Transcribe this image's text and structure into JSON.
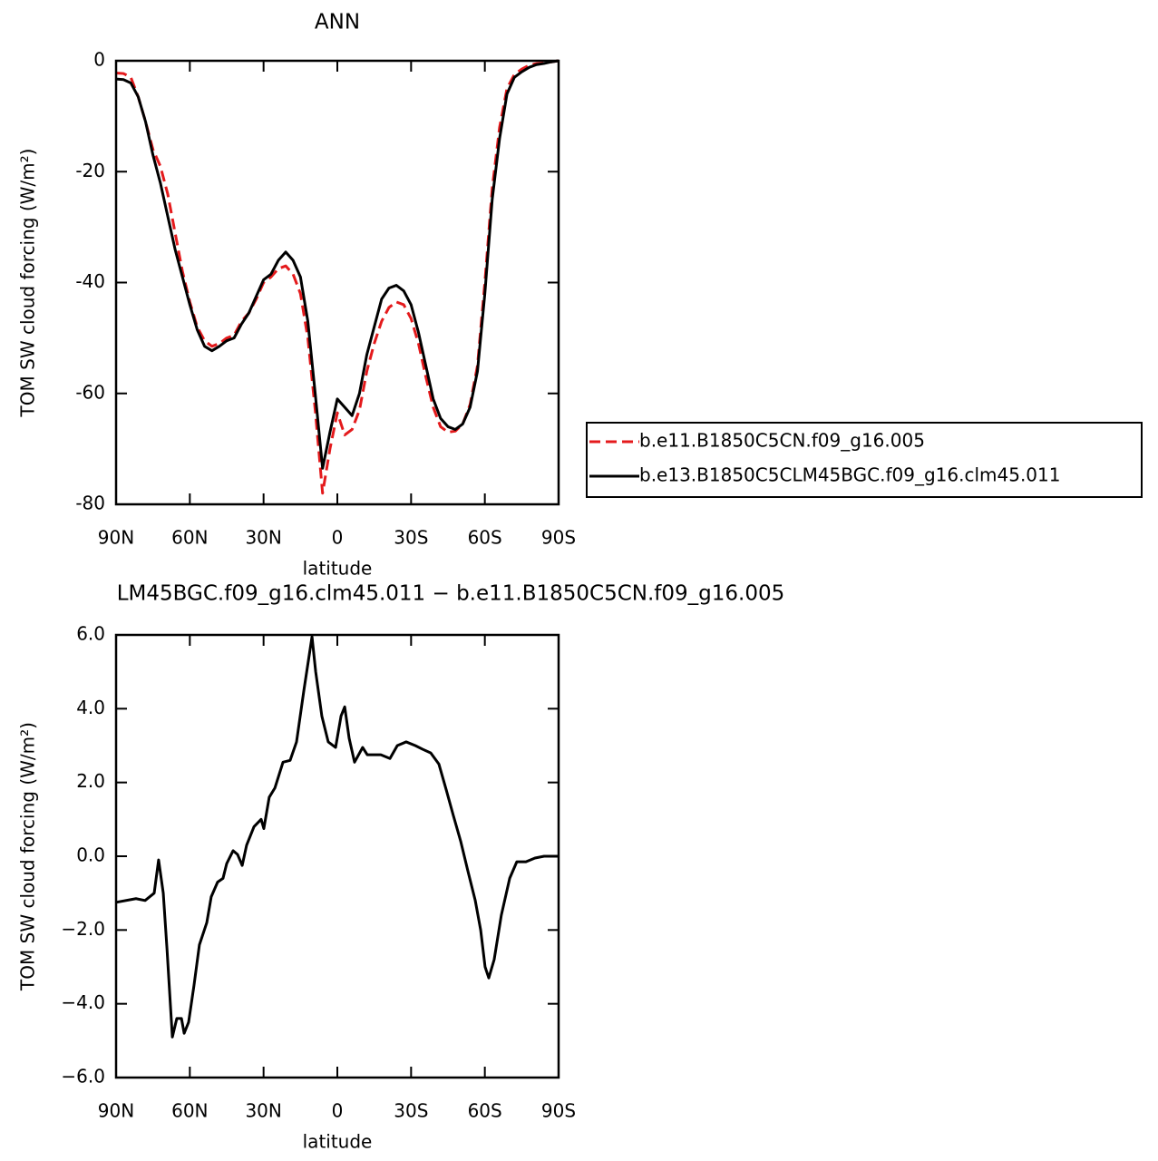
{
  "chart_data": [
    {
      "type": "line",
      "title": "ANN",
      "xlabel": "latitude",
      "ylabel": "TOM SW cloud forcing (W/m²)",
      "x": [
        90,
        87,
        84,
        81,
        78,
        75,
        72,
        69,
        66,
        63,
        60,
        57,
        54,
        51,
        48,
        45,
        42,
        39,
        36,
        33,
        30,
        27,
        24,
        21,
        18,
        15,
        12,
        9,
        6,
        3,
        0,
        -3,
        -6,
        -9,
        -12,
        -15,
        -18,
        -21,
        -24,
        -27,
        -30,
        -33,
        -36,
        -39,
        -42,
        -45,
        -48,
        -51,
        -54,
        -57,
        -60,
        -63,
        -66,
        -69,
        -72,
        -75,
        -78,
        -81,
        -84,
        -87,
        -90
      ],
      "series": [
        {
          "name": "b.e11.B1850C5CN.f09_g16.005",
          "color": "#e41a1c",
          "dashed": true,
          "values": [
            -2.2,
            -2.3,
            -3,
            -6.5,
            -11,
            -16,
            -19,
            -24,
            -31,
            -38,
            -43.5,
            -48,
            -50.5,
            -51.5,
            -51,
            -50,
            -49.5,
            -47,
            -45.5,
            -43,
            -40,
            -39,
            -37.5,
            -37,
            -38.5,
            -42,
            -50,
            -63,
            -78,
            -70,
            -63.5,
            -67.5,
            -66.5,
            -63,
            -56,
            -51,
            -47,
            -44.5,
            -43.5,
            -44,
            -46.5,
            -51,
            -57,
            -62.5,
            -66,
            -67,
            -66.8,
            -65.5,
            -62,
            -55,
            -40,
            -23,
            -12,
            -5,
            -2.5,
            -1.5,
            -0.8,
            -0.5,
            -0.4,
            -0.2,
            0
          ]
        },
        {
          "name": "b.e13.B1850C5CLM45BGC.f09_g16.clm45.011",
          "color": "#000000",
          "dashed": false,
          "values": [
            -3.3,
            -3.4,
            -4,
            -6.5,
            -11,
            -17,
            -22,
            -28,
            -34,
            -39,
            -44,
            -48.5,
            -51.5,
            -52.3,
            -51.5,
            -50.5,
            -50,
            -47.5,
            -45.5,
            -42.5,
            -39.5,
            -38.5,
            -36,
            -34.5,
            -36,
            -39,
            -47,
            -60,
            -73.5,
            -67,
            -61,
            -62.5,
            -64,
            -60,
            -53,
            -48,
            -43,
            -41,
            -40.5,
            -41.5,
            -44,
            -49,
            -55,
            -61,
            -64.5,
            -66,
            -66.5,
            -65.5,
            -62.5,
            -56,
            -42,
            -25,
            -14,
            -6,
            -3,
            -2,
            -1.2,
            -0.7,
            -0.5,
            -0.2,
            0
          ]
        }
      ],
      "xlim": [
        90,
        -90
      ],
      "xticks": [
        {
          "value": 90,
          "label": "90N"
        },
        {
          "value": 60,
          "label": "60N"
        },
        {
          "value": 30,
          "label": "30N"
        },
        0,
        {
          "value": -30,
          "label": "30S"
        },
        {
          "value": -60,
          "label": "60S"
        },
        {
          "value": -90,
          "label": "90S"
        }
      ],
      "ylim": [
        -80,
        0
      ],
      "yticks": [
        0,
        -20,
        -40,
        -60,
        -80
      ],
      "legend": "right"
    },
    {
      "type": "line",
      "title": "LM45BGC.f09_g16.clm45.011 − b.e11.B1850C5CN.f09_g16.005",
      "xlabel": "latitude",
      "ylabel": "TOM SW cloud forcing (W/m²)",
      "x": [
        90,
        81.9,
        78.2,
        74.5,
        72.7,
        70.8,
        69.3,
        67.1,
        65.3,
        63.4,
        62.3,
        60.5,
        58.3,
        56.1,
        53.1,
        51.3,
        48.7,
        46.5,
        45,
        42.4,
        40.6,
        38.7,
        36.9,
        33.9,
        31,
        29.9,
        27.7,
        25.4,
        22.1,
        19.2,
        16.6,
        13.6,
        10.3,
        8.8,
        6.3,
        3.7,
        0.7,
        -1.5,
        -3,
        -4.8,
        -7,
        -10.3,
        -12.2,
        -14.8,
        -17.7,
        -21.4,
        -24.4,
        -28,
        -31.7,
        -34.7,
        -38,
        -41.3,
        -44.3,
        -47.2,
        -50.2,
        -53.1,
        -56.1,
        -58.3,
        -60.1,
        -61.6,
        -63.8,
        -66.7,
        -70.1,
        -73,
        -76.7,
        -80.4,
        -84.1,
        -90
      ],
      "values": [
        -1.25,
        -1.15,
        -1.2,
        -1,
        -0.1,
        -1,
        -2.5,
        -4.9,
        -4.4,
        -4.4,
        -4.8,
        -4.5,
        -3.5,
        -2.4,
        -1.8,
        -1.1,
        -0.7,
        -0.6,
        -0.2,
        0.15,
        0.05,
        -0.25,
        0.3,
        0.8,
        1,
        0.75,
        1.6,
        1.85,
        2.55,
        2.6,
        3.1,
        4.5,
        5.95,
        5,
        3.8,
        3.1,
        2.95,
        3.8,
        4.05,
        3.2,
        2.55,
        2.95,
        2.75,
        2.75,
        2.75,
        2.65,
        3,
        3.1,
        3,
        2.9,
        2.8,
        2.5,
        1.8,
        1.1,
        0.4,
        -0.4,
        -1.2,
        -2,
        -3,
        -3.3,
        -2.8,
        -1.6,
        -0.6,
        -0.15,
        -0.15,
        -0.05,
        0,
        0
      ],
      "color": "#000000",
      "xlim": [
        90,
        -90
      ],
      "xticks": [
        {
          "value": 90,
          "label": "90N"
        },
        {
          "value": 60,
          "label": "60N"
        },
        {
          "value": 30,
          "label": "30N"
        },
        0,
        {
          "value": -30,
          "label": "30S"
        },
        {
          "value": -60,
          "label": "60S"
        },
        {
          "value": -90,
          "label": "90S"
        }
      ],
      "ylim": [
        -6,
        6
      ],
      "yticks": [
        {
          "value": 6,
          "label": "6.0"
        },
        {
          "value": 4,
          "label": "4.0"
        },
        {
          "value": 2,
          "label": "2.0"
        },
        {
          "value": 0,
          "label": "0.0"
        },
        {
          "value": -2,
          "label": "−2.0"
        },
        {
          "value": -4,
          "label": "−4.0"
        },
        {
          "value": -6,
          "label": "−6.0"
        }
      ]
    }
  ]
}
